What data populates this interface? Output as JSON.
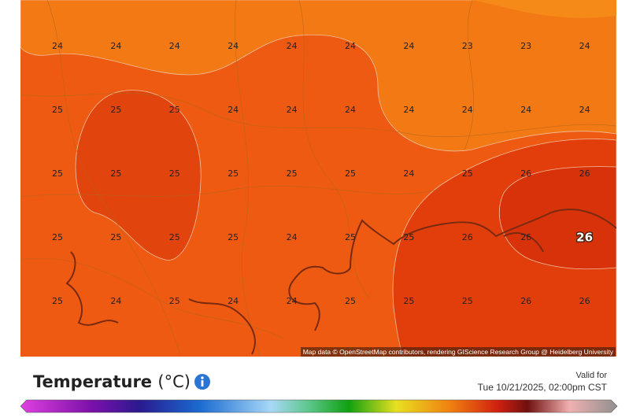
{
  "map": {
    "labels": [
      [
        24,
        24,
        24,
        24,
        24,
        24,
        24,
        23,
        23,
        24
      ],
      [
        25,
        25,
        25,
        24,
        24,
        24,
        24,
        24,
        24,
        24
      ],
      [
        25,
        25,
        25,
        25,
        25,
        25,
        24,
        25,
        26,
        26
      ],
      [
        25,
        25,
        25,
        25,
        24,
        25,
        25,
        26,
        26,
        26
      ],
      [
        25,
        24,
        25,
        24,
        24,
        25,
        25,
        25,
        26,
        26
      ]
    ],
    "attribution": "Map data © OpenStreetMap contributors, rendering GIScience Research Group @ Heidelberg University"
  },
  "legend": {
    "title": "Temperature",
    "unit": "(°C)",
    "valid_label": "Valid for",
    "valid_time": "Tue 10/21/2025, 02:00pm CST"
  }
}
